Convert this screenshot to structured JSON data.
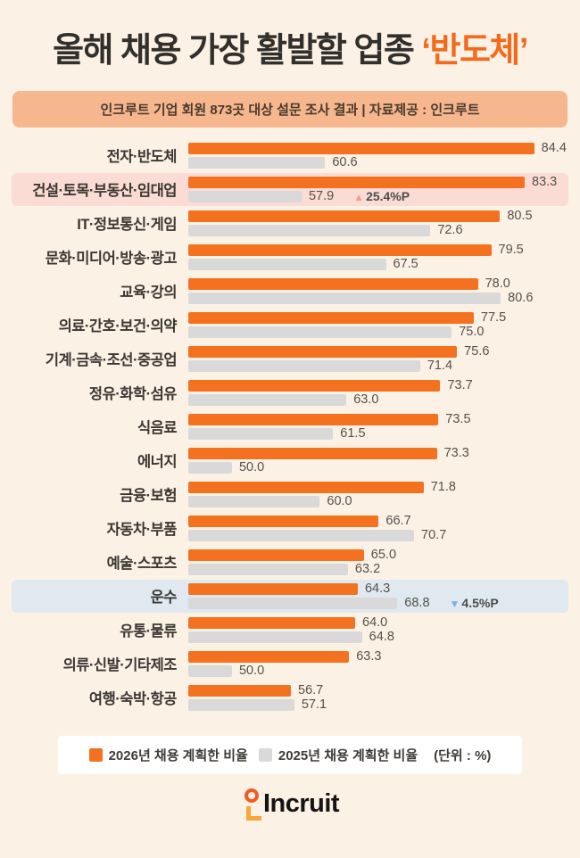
{
  "page": {
    "title_prefix": "올해 채용 가장 활발할 업종 ",
    "title_highlight": "‘반도체’",
    "subtitle": "인크루트 기업 회원 873곳 대상 설문 조사 결과 | 자료제공 : 인크루트"
  },
  "colors": {
    "background": "#FCF1E5",
    "bar_2026": "#F4711F",
    "bar_2025": "#D9D9D9",
    "banner_bg": "#F6B68E",
    "title_accent": "#F26B1D",
    "highlight_pink": "#FBDCD4",
    "highlight_blue": "#DFE9EF",
    "delta_up_arrow": "#F19C94",
    "delta_down_arrow": "#7FB2DE"
  },
  "chart_data": {
    "type": "bar",
    "orientation": "horizontal",
    "title": "올해 채용 가장 활발할 업종 ‘반도체’",
    "unit": "%",
    "value_axis_visible": false,
    "effective_value_range": [
      45,
      84.4
    ],
    "legend_position": "bottom",
    "categories": [
      "전자·반도체",
      "건설·토목·부동산·임대업",
      "IT·정보통신·게임",
      "문화·미디어·방송·광고",
      "교육·강의",
      "의료·간호·보건·의약",
      "기계·금속·조선·중공업",
      "정유·화학·섬유",
      "식음료",
      "에너지",
      "금융·보험",
      "자동차·부품",
      "예술·스포츠",
      "운수",
      "유통·물류",
      "의류·신발·기타제조",
      "여행·숙박·항공"
    ],
    "series": [
      {
        "name": "2026년 채용 계획한 비율",
        "color": "#F4711F",
        "values": [
          84.4,
          83.3,
          80.5,
          79.5,
          78.0,
          77.5,
          75.6,
          73.7,
          73.5,
          73.3,
          71.8,
          66.7,
          65.0,
          64.3,
          64.0,
          63.3,
          56.7
        ]
      },
      {
        "name": "2025년 채용 계획한 비율",
        "color": "#D9D9D9",
        "values": [
          60.6,
          57.9,
          72.6,
          67.5,
          80.6,
          75.0,
          71.4,
          63.0,
          61.5,
          50.0,
          60.0,
          70.7,
          63.2,
          68.8,
          64.8,
          50.0,
          57.1
        ]
      }
    ],
    "annotations": [
      {
        "index": 1,
        "category": "건설·토목·부동산·임대업",
        "direction": "up",
        "arrow": "▲",
        "label": "25.4%P",
        "row_highlight": "pink"
      },
      {
        "index": 13,
        "category": "운수",
        "direction": "down",
        "arrow": "▼",
        "label": "4.5%P",
        "row_highlight": "blue"
      }
    ]
  },
  "legend": {
    "items": [
      {
        "label": "2026년 채용 계획한 비율",
        "color": "#F4711F"
      },
      {
        "label": "2025년 채용 계획한 비율",
        "color": "#D9D9D9"
      }
    ],
    "unit_note": "(단위 : %)"
  },
  "footer": {
    "logo_text": "Incruit"
  }
}
